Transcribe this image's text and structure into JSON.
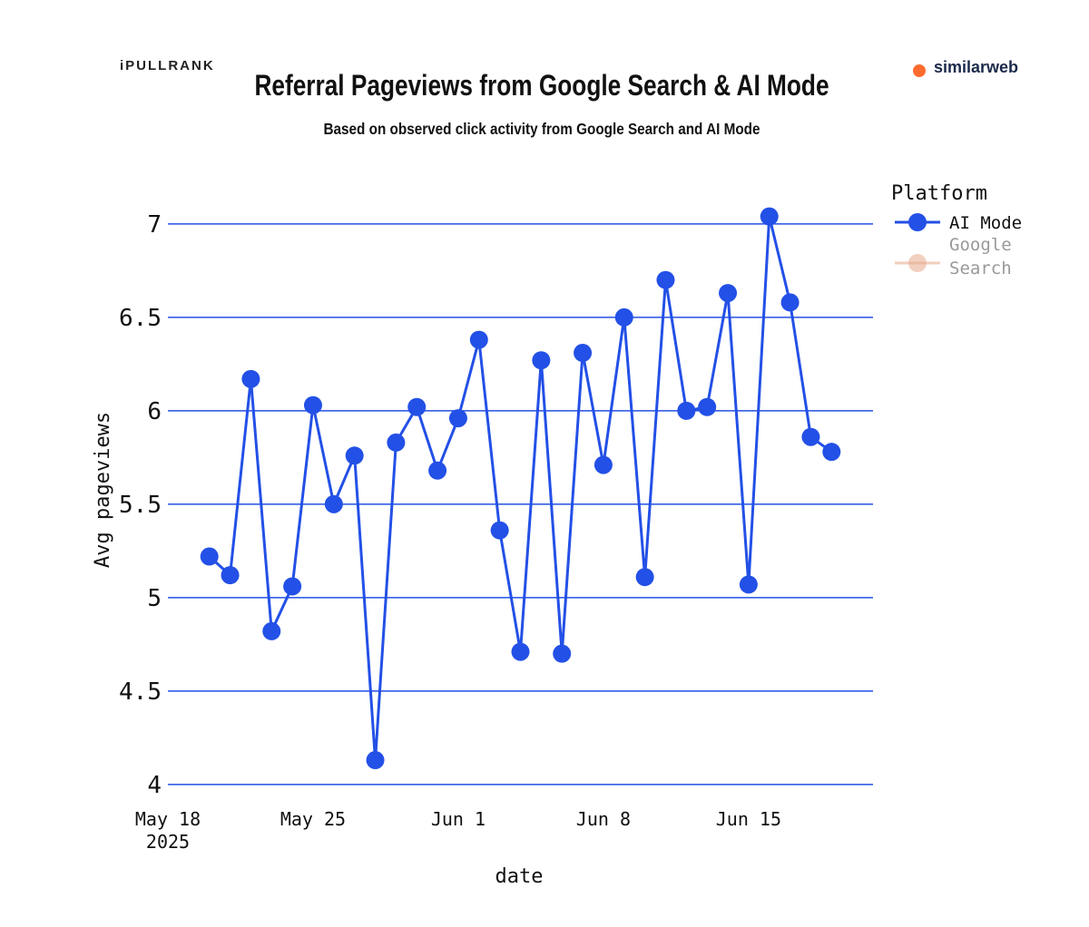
{
  "logos": {
    "left": "iPULLRANK",
    "right": "similarweb"
  },
  "chart_data": {
    "type": "line",
    "title": "Referral Pageviews from Google Search & AI Mode",
    "subtitle": "Based on observed click activity from Google Search and AI Mode",
    "x_label": "date",
    "y_label": "Avg pageviews",
    "legend_title": "Platform",
    "legend": "top-right-outside",
    "grid": true,
    "x": [
      "2025-05-20",
      "2025-05-21",
      "2025-05-22",
      "2025-05-23",
      "2025-05-24",
      "2025-05-25",
      "2025-05-26",
      "2025-05-27",
      "2025-05-28",
      "2025-05-29",
      "2025-05-30",
      "2025-05-31",
      "2025-06-01",
      "2025-06-02",
      "2025-06-03",
      "2025-06-04",
      "2025-06-05",
      "2025-06-06",
      "2025-06-07",
      "2025-06-08",
      "2025-06-09",
      "2025-06-10",
      "2025-06-11",
      "2025-06-12",
      "2025-06-13",
      "2025-06-14",
      "2025-06-15",
      "2025-06-16",
      "2025-06-17",
      "2025-06-18",
      "2025-06-19"
    ],
    "series": [
      {
        "name": "AI Mode",
        "color": "#2350e6",
        "values": [
          5.22,
          5.12,
          6.17,
          4.82,
          5.06,
          6.03,
          5.5,
          5.76,
          4.13,
          5.83,
          6.02,
          5.68,
          5.96,
          6.38,
          5.36,
          4.71,
          6.27,
          4.7,
          6.31,
          5.71,
          6.5,
          5.11,
          6.7,
          6.0,
          6.02,
          6.63,
          5.07,
          7.04,
          6.58,
          5.86,
          5.78
        ]
      },
      {
        "name": "Google Search",
        "color": "#e8a98a",
        "hidden": true,
        "values": [
          null,
          null,
          null,
          null,
          null,
          null,
          null,
          null,
          null,
          null,
          null,
          null,
          null,
          null,
          null,
          null,
          null,
          null,
          null,
          null,
          null,
          null,
          null,
          null,
          null,
          null,
          null,
          null,
          null,
          null,
          null
        ]
      }
    ],
    "xlim": [
      "2025-05-18",
      "2025-06-21"
    ],
    "xticks": [
      {
        "value": "2025-05-18",
        "label": "May 18\n2025"
      },
      {
        "value": "2025-05-25",
        "label": "May 25"
      },
      {
        "value": "2025-06-01",
        "label": "Jun 1"
      },
      {
        "value": "2025-06-08",
        "label": "Jun 8"
      },
      {
        "value": "2025-06-15",
        "label": "Jun 15"
      }
    ],
    "ylim": [
      3.97,
      7.15
    ],
    "yticks": [
      4,
      4.5,
      5,
      5.5,
      6,
      6.5,
      7
    ]
  }
}
